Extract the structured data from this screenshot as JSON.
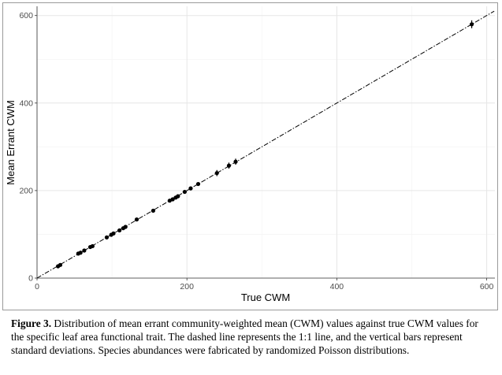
{
  "chart_data": {
    "type": "scatter",
    "xlabel": "True CWM",
    "ylabel": "Mean Errant CWM",
    "xlim": [
      0,
      610
    ],
    "ylim": [
      0,
      610
    ],
    "xticks": [
      "0",
      "200",
      "400",
      "600"
    ],
    "yticks": [
      "0",
      "200",
      "400",
      "600"
    ],
    "grid": true,
    "reference_line": {
      "style": "dashdot",
      "slope": 1,
      "intercept": 0
    },
    "points": [
      {
        "x": 28,
        "y": 27,
        "sd": 3
      },
      {
        "x": 31,
        "y": 30,
        "sd": 3
      },
      {
        "x": 55,
        "y": 56,
        "sd": 3
      },
      {
        "x": 58,
        "y": 58,
        "sd": 3
      },
      {
        "x": 63,
        "y": 63,
        "sd": 3
      },
      {
        "x": 71,
        "y": 71,
        "sd": 3
      },
      {
        "x": 74,
        "y": 73,
        "sd": 3
      },
      {
        "x": 93,
        "y": 93,
        "sd": 3
      },
      {
        "x": 99,
        "y": 99,
        "sd": 3
      },
      {
        "x": 102,
        "y": 102,
        "sd": 3
      },
      {
        "x": 110,
        "y": 109,
        "sd": 3
      },
      {
        "x": 115,
        "y": 114,
        "sd": 3
      },
      {
        "x": 118,
        "y": 117,
        "sd": 3
      },
      {
        "x": 133,
        "y": 134,
        "sd": 3
      },
      {
        "x": 155,
        "y": 154,
        "sd": 3
      },
      {
        "x": 177,
        "y": 177,
        "sd": 4
      },
      {
        "x": 181,
        "y": 180,
        "sd": 4
      },
      {
        "x": 185,
        "y": 184,
        "sd": 4
      },
      {
        "x": 188,
        "y": 187,
        "sd": 4
      },
      {
        "x": 197,
        "y": 197,
        "sd": 4
      },
      {
        "x": 205,
        "y": 205,
        "sd": 4
      },
      {
        "x": 215,
        "y": 215,
        "sd": 4
      },
      {
        "x": 240,
        "y": 240,
        "sd": 7
      },
      {
        "x": 256,
        "y": 257,
        "sd": 7
      },
      {
        "x": 265,
        "y": 266,
        "sd": 7
      },
      {
        "x": 580,
        "y": 580,
        "sd": 9
      }
    ]
  },
  "caption": {
    "label": "Figure 3.",
    "text": " Distribution of mean errant community-weighted mean (CWM) values against true CWM values for the specific leaf area functional trait. The dashed line represents the 1:1 line, and the vertical bars represent standard deviations. Species abundances were fabricated by randomized Poisson distributions."
  }
}
